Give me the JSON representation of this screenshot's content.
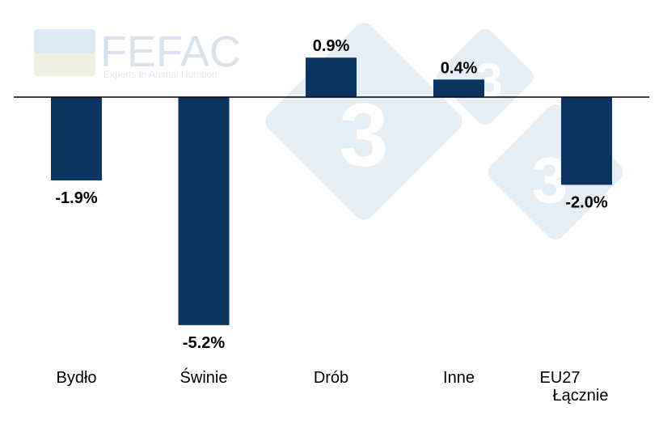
{
  "chart_data": {
    "type": "bar",
    "categories": [
      "Bydło",
      "Świnie",
      "Drób",
      "Inne",
      "EU27 Łącznie"
    ],
    "values": [
      -1.9,
      -5.2,
      0.9,
      0.4,
      -2.0
    ],
    "data_labels": [
      "-1.9%",
      "-5.2%",
      "0.9%",
      "0.4%",
      "-2.0%"
    ],
    "title": "",
    "xlabel": "",
    "ylabel": "",
    "ylim": [
      -5.2,
      0.9
    ],
    "grid": false,
    "legend": "none",
    "bar_color": "#0b3461"
  },
  "watermark": {
    "logo_text": "FEFAC",
    "logo_subtitle": "Experts in Animal Nutrition",
    "mark_text": "3"
  }
}
